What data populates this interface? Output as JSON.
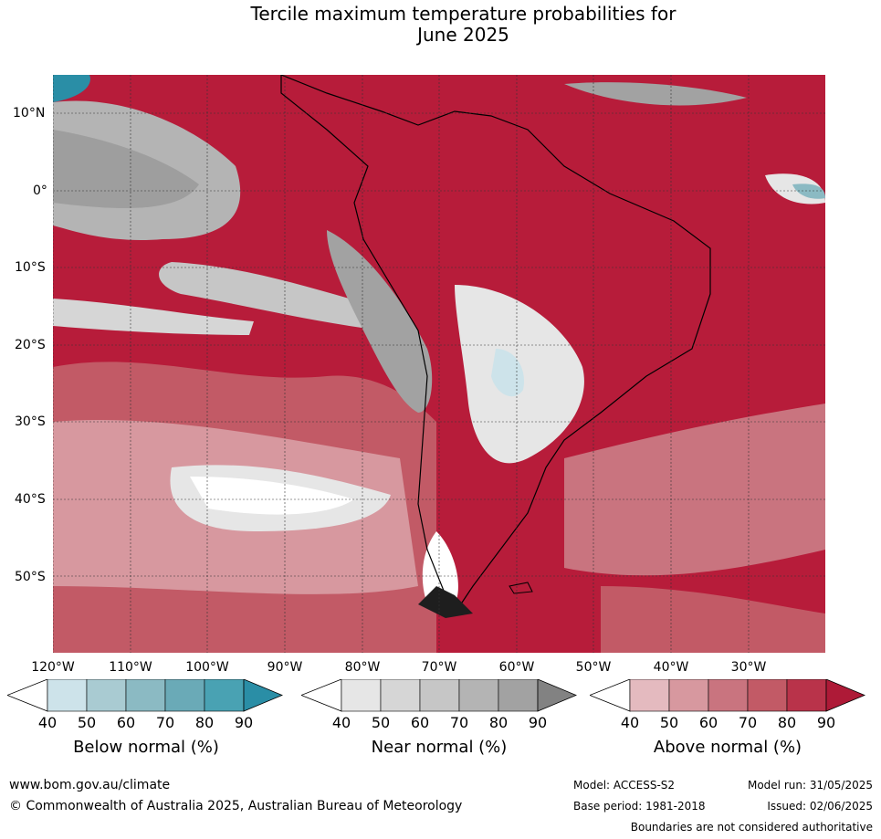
{
  "title_line1": "Tercile maximum temperature probabilities for",
  "title_line2": "June 2025",
  "lat_labels": [
    "10°N",
    "0°",
    "10°S",
    "20°S",
    "30°S",
    "40°S",
    "50°S"
  ],
  "lon_labels": [
    "120°W",
    "110°W",
    "100°W",
    "90°W",
    "80°W",
    "70°W",
    "60°W",
    "50°W",
    "40°W",
    "30°W"
  ],
  "colorbars": [
    {
      "title": "Below normal (%)",
      "ticks": [
        "40",
        "50",
        "60",
        "70",
        "80",
        "90"
      ],
      "colors": [
        "#cde3ea",
        "#a9cbd2",
        "#8bbac3",
        "#6aaab7",
        "#49a2b3",
        "#2a8ea6"
      ]
    },
    {
      "title": "Near normal (%)",
      "ticks": [
        "40",
        "50",
        "60",
        "70",
        "80",
        "90"
      ],
      "colors": [
        "#e6e6e6",
        "#d6d6d6",
        "#c6c6c6",
        "#b4b4b4",
        "#a2a2a2",
        "#828282"
      ]
    },
    {
      "title": "Above normal (%)",
      "ticks": [
        "40",
        "50",
        "60",
        "70",
        "80",
        "90"
      ],
      "colors": [
        "#e4babf",
        "#d7989f",
        "#c9747f",
        "#c25a66",
        "#b9334a",
        "#ae1a37"
      ]
    }
  ],
  "footer": {
    "website": "www.bom.gov.au/climate",
    "copyright": "© Commonwealth of Australia 2025, Australian Bureau of Meteorology",
    "model": "Model: ACCESS-S2",
    "base_period": "Base period: 1981-2018",
    "model_run": "Model run: 31/05/2025",
    "issued": "Issued: 02/06/2025",
    "disclaimer": "Boundaries are not considered authoritative"
  },
  "colors": {
    "above_dominant": "#b71c3a",
    "above_light": "#d7989f",
    "near_light": "#e6e6e6",
    "near_mid": "#b4b4b4",
    "below_mid": "#6aaab7"
  }
}
